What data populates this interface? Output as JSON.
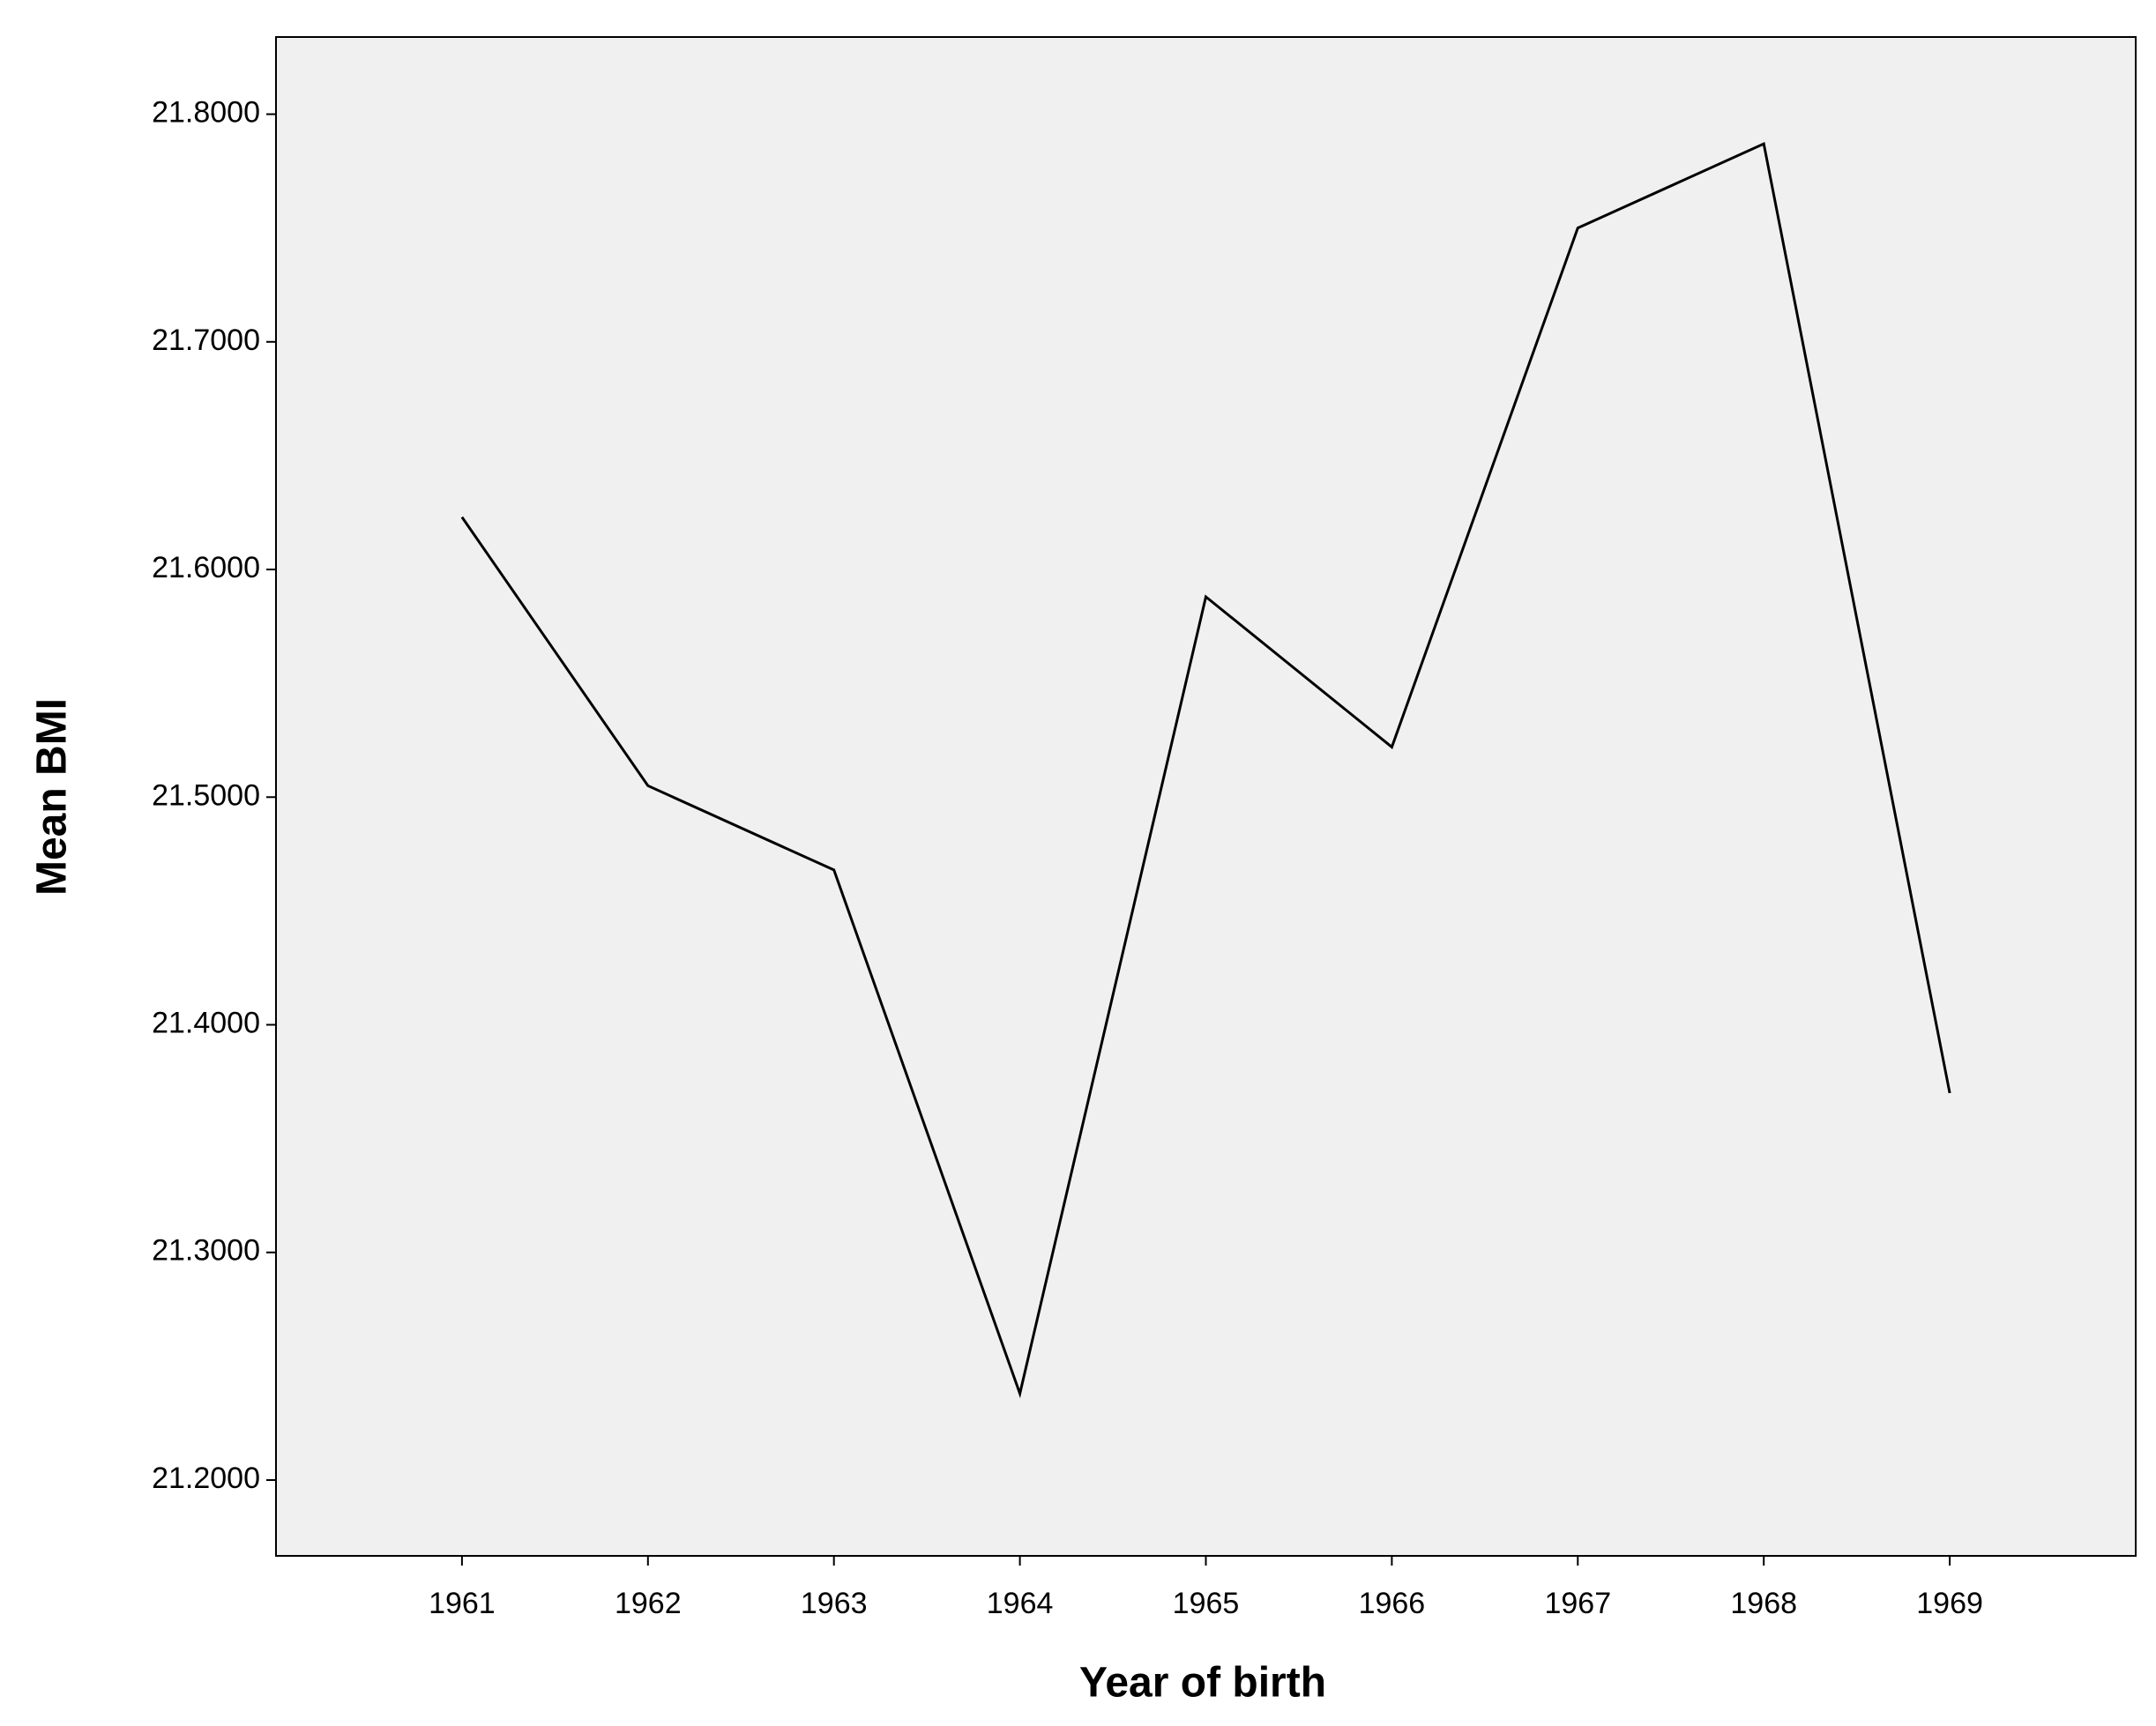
{
  "chart_data": {
    "type": "line",
    "x_label": "Year of birth",
    "y_label": "Mean BMI",
    "categories": [
      "1961",
      "1962",
      "1963",
      "1964",
      "1965",
      "1966",
      "1967",
      "1968",
      "1969"
    ],
    "values": [
      21.623,
      21.505,
      21.468,
      21.238,
      21.588,
      21.522,
      21.75,
      21.787,
      21.37
    ],
    "color": "#000000",
    "ylim": [
      21.1667,
      21.8339
    ],
    "yticks": [
      {
        "value": 21.2,
        "label": "21.2000"
      },
      {
        "value": 21.3,
        "label": "21.3000"
      },
      {
        "value": 21.4,
        "label": "21.4000"
      },
      {
        "value": 21.5,
        "label": "21.5000"
      },
      {
        "value": 21.6,
        "label": "21.6000"
      },
      {
        "value": 21.7,
        "label": "21.7000"
      },
      {
        "value": 21.8,
        "label": "21.8000"
      }
    ],
    "grid": false,
    "background": "#f0f0f0"
  }
}
